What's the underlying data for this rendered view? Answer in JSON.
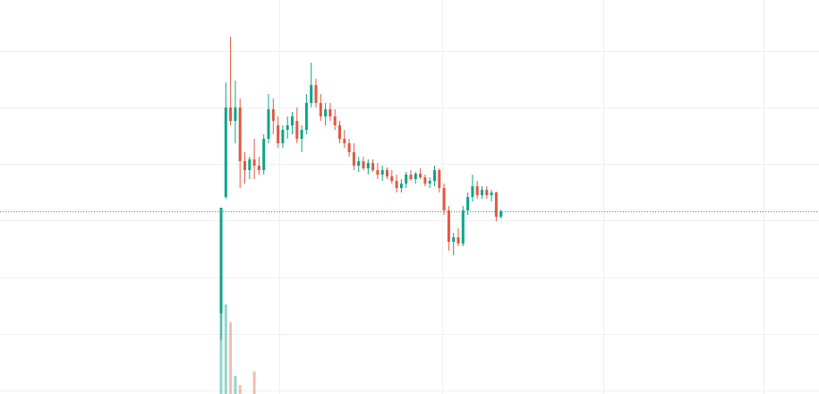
{
  "chart_data": {
    "type": "candlestick",
    "up_color": "#0aa58a",
    "down_color": "#e2583e",
    "ylim": [
      0,
      440
    ],
    "volume_lim": [
      0,
      440
    ],
    "last_price_line": true,
    "open": [
      90,
      220,
      320,
      305,
      320,
      260,
      250,
      262,
      255,
      250,
      285,
      318,
      300,
      280,
      295,
      300,
      305,
      285,
      295,
      325,
      345,
      325,
      310,
      318,
      310,
      300,
      285,
      280,
      270,
      255,
      260,
      252,
      258,
      250,
      245,
      250,
      243,
      238,
      230,
      235,
      245,
      240,
      246,
      242,
      235,
      238,
      250,
      230,
      205,
      170,
      175,
      168,
      205,
      220,
      232,
      222,
      228,
      222,
      225,
      198
    ],
    "high": [
      208,
      348,
      399,
      350,
      330,
      270,
      265,
      285,
      265,
      290,
      335,
      330,
      310,
      300,
      310,
      315,
      320,
      300,
      335,
      370,
      352,
      335,
      325,
      325,
      318,
      305,
      295,
      285,
      280,
      265,
      265,
      262,
      262,
      258,
      255,
      253,
      250,
      245,
      240,
      248,
      250,
      248,
      252,
      245,
      242,
      255,
      252,
      235,
      210,
      180,
      185,
      210,
      225,
      245,
      238,
      232,
      232,
      228,
      226,
      206
    ],
    "low": [
      60,
      218,
      300,
      280,
      230,
      235,
      240,
      240,
      245,
      245,
      280,
      290,
      275,
      275,
      285,
      290,
      280,
      270,
      290,
      320,
      320,
      305,
      300,
      305,
      295,
      280,
      275,
      265,
      250,
      248,
      250,
      245,
      248,
      240,
      238,
      240,
      235,
      225,
      225,
      230,
      238,
      235,
      240,
      232,
      230,
      232,
      225,
      200,
      160,
      155,
      165,
      165,
      200,
      215,
      218,
      218,
      218,
      215,
      193,
      196
    ],
    "close": [
      208,
      320,
      305,
      320,
      260,
      250,
      262,
      255,
      250,
      285,
      318,
      305,
      280,
      295,
      300,
      310,
      285,
      295,
      325,
      345,
      325,
      310,
      318,
      310,
      300,
      285,
      280,
      270,
      255,
      260,
      252,
      258,
      250,
      245,
      250,
      243,
      238,
      230,
      235,
      245,
      240,
      246,
      242,
      235,
      238,
      250,
      230,
      205,
      170,
      175,
      168,
      205,
      220,
      232,
      222,
      228,
      222,
      225,
      198,
      204
    ],
    "volume": [
      100,
      100,
      80,
      20,
      10,
      0,
      0,
      25,
      0,
      0,
      0,
      0,
      0,
      0,
      0,
      0,
      0,
      0,
      0,
      0,
      0,
      0,
      0,
      0,
      0,
      0,
      0,
      0,
      0,
      0,
      0,
      0,
      0,
      0,
      0,
      0,
      0,
      0,
      0,
      0,
      0,
      0,
      0,
      0,
      0,
      0,
      0,
      0,
      0,
      0,
      0,
      0,
      0,
      0,
      0,
      0,
      0,
      0,
      0,
      0
    ]
  }
}
